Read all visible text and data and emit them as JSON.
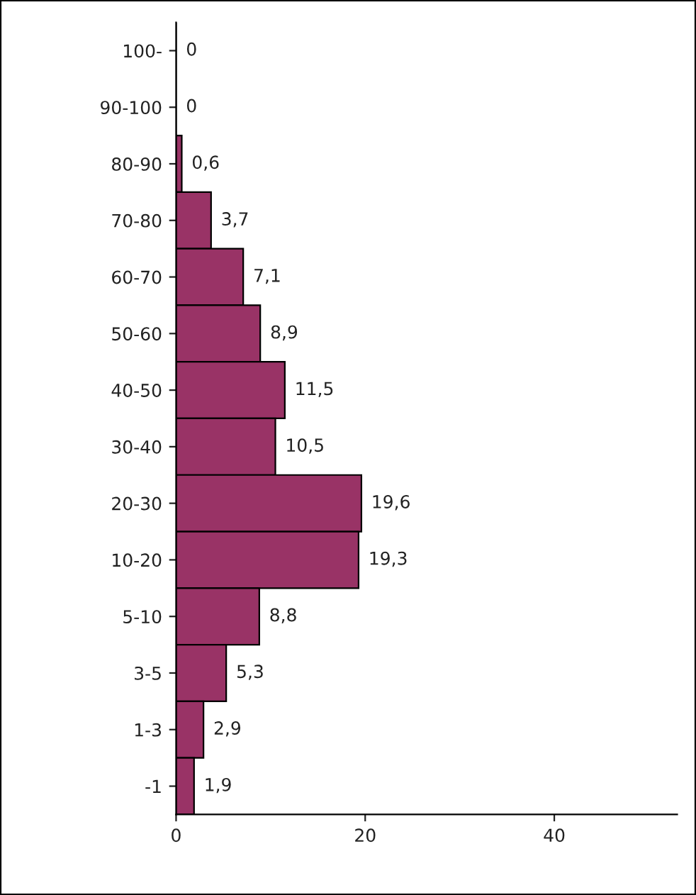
{
  "chart_data": {
    "type": "bar",
    "orientation": "horizontal",
    "categories": [
      "100-",
      "90-100",
      "80-90",
      "70-80",
      "60-70",
      "50-60",
      "40-50",
      "30-40",
      "20-30",
      "10-20",
      "5-10",
      "3-5",
      "1-3",
      "-1"
    ],
    "values": [
      0,
      0,
      0.6,
      3.7,
      7.1,
      8.9,
      11.5,
      10.5,
      19.6,
      19.3,
      8.8,
      5.3,
      2.9,
      1.9
    ],
    "value_labels": [
      "0",
      "0",
      "0,6",
      "3,7",
      "7,1",
      "8,9",
      "11,5",
      "10,5",
      "19,6",
      "19,3",
      "8,8",
      "5,3",
      "2,9",
      "1,9"
    ],
    "color": "#993366",
    "xlim": [
      0,
      53
    ],
    "xticks": [
      0,
      20,
      40
    ],
    "grid": false,
    "legend": false
  }
}
